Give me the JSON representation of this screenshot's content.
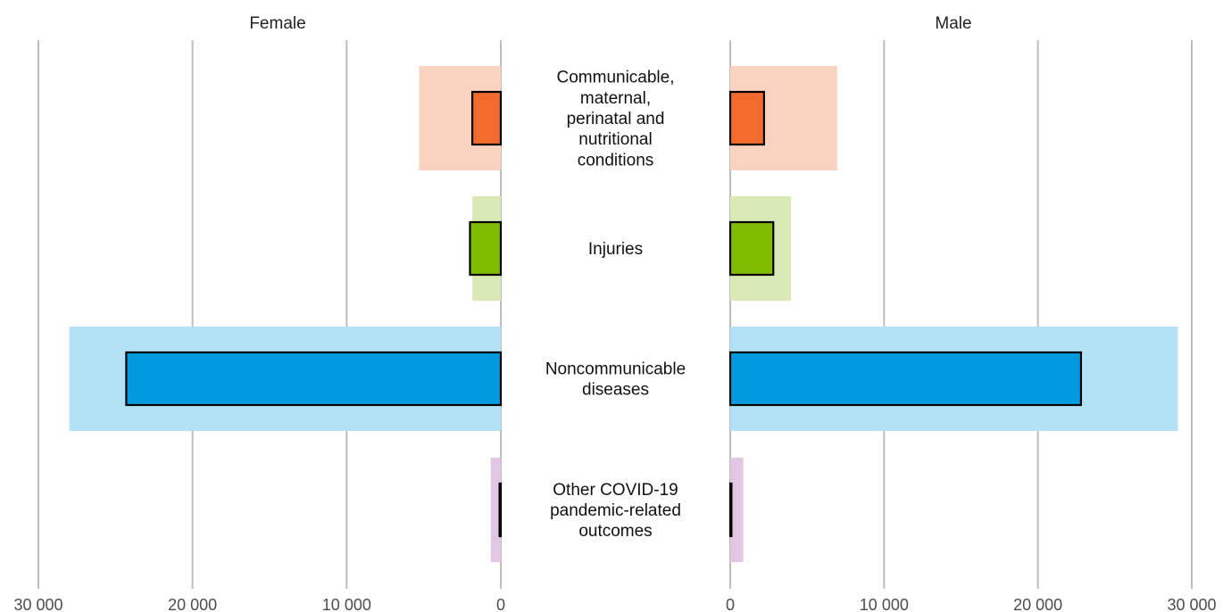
{
  "chart_data": {
    "type": "bar",
    "orientation": "horizontal",
    "layout": "back-to-back",
    "panels": [
      "Female",
      "Male"
    ],
    "categories": [
      {
        "label_lines": [
          "Communicable,",
          "maternal,",
          "perinatal and",
          "nutritional",
          "conditions"
        ],
        "color": "#F26A2D",
        "band_color": "#FAD2C0"
      },
      {
        "label_lines": [
          "Injuries"
        ],
        "color": "#80BD01",
        "band_color": "#DAEAB5"
      },
      {
        "label_lines": [
          "Noncommunicable",
          "diseases"
        ],
        "color": "#009ADE",
        "band_color": "#B3E1F5"
      },
      {
        "label_lines": [
          "Other COVID-19",
          "pandemic-related",
          "outcomes"
        ],
        "color": "#C490C8",
        "band_color": "#E2C6E4"
      }
    ],
    "series": [
      {
        "name": "Female",
        "values": [
          1850,
          2000,
          24300,
          80
        ],
        "band_values": [
          5300,
          1850,
          28000,
          650
        ]
      },
      {
        "name": "Male",
        "values": [
          2200,
          2800,
          22800,
          80
        ],
        "band_values": [
          6950,
          3950,
          29100,
          850
        ]
      }
    ],
    "xlim": [
      0,
      30000
    ],
    "xticks": [
      30000,
      20000,
      10000,
      0
    ],
    "tick_labels": [
      "30 000",
      "20 000",
      "10 000",
      "0"
    ],
    "male_tick_labels": [
      "0",
      "10 000",
      "20 000",
      "30 000"
    ],
    "grid": true
  }
}
